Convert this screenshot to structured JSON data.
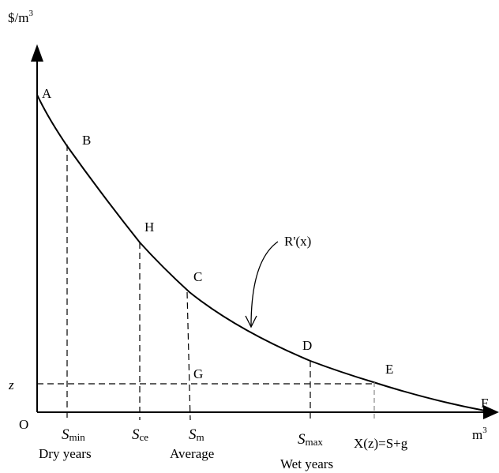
{
  "axes": {
    "y_unit_base": "$/m",
    "y_unit_exp": "3",
    "x_unit_base": "m",
    "x_unit_exp": "3",
    "origin": "O"
  },
  "points": {
    "A": "A",
    "B": "B",
    "H": "H",
    "C": "C",
    "D": "D",
    "E": "E",
    "F": "F",
    "G": "G"
  },
  "curve_label": "R'(x)",
  "z_label": "z",
  "x_ticks": {
    "smin": {
      "base": "S",
      "sub": "min",
      "caption": "Dry years"
    },
    "sce": {
      "base": "S",
      "sub": "ce"
    },
    "sm": {
      "base": "S",
      "sub": "m",
      "caption": "Average"
    },
    "smax": {
      "base": "S",
      "sub": "max",
      "caption": "Wet years"
    },
    "xz": {
      "text": "X(z)=S+g"
    }
  }
}
